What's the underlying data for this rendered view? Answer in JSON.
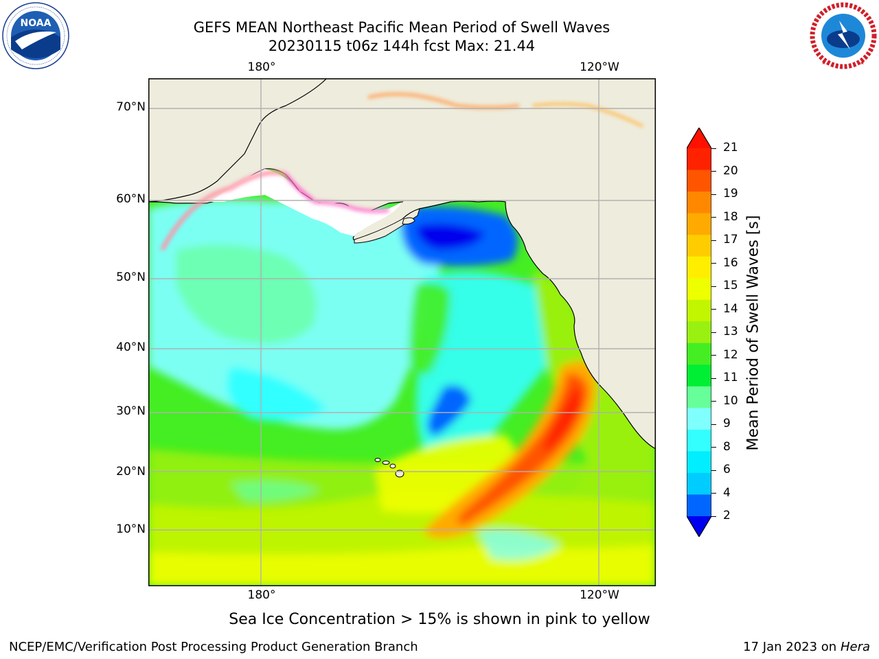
{
  "title": {
    "line1": "GEFS MEAN Northeast Pacific Mean Period of Swell Waves",
    "line2": "20230115 t06z 144h fcst   Max: 21.44"
  },
  "logos": {
    "left": "noaa-logo",
    "left_text": "NOAA",
    "left_ring_text": "NATIONAL OCEANIC AND ATMOSPHERIC ADMINISTRATION · U.S. DEPARTMENT OF COMMERCE",
    "right": "nws-logo",
    "right_ring_text": "NATIONAL WEATHER SERVICE"
  },
  "map": {
    "lon_labels": [
      "180°",
      "120°W"
    ],
    "lat_labels": [
      "70°N",
      "60°N",
      "50°N",
      "40°N",
      "30°N",
      "20°N",
      "10°N"
    ],
    "gridlines": true,
    "colors": {
      "land": "#eeecdc",
      "frame": "#000000",
      "grid": "#b0b0b0"
    }
  },
  "colorbar": {
    "label": "Mean Period of Swell Waves [s]",
    "ticks": [
      "2",
      "4",
      "6",
      "8",
      "9",
      "10",
      "11",
      "12",
      "13",
      "14",
      "15",
      "16",
      "17",
      "18",
      "19",
      "20",
      "21"
    ],
    "colors": [
      "#0000ee",
      "#0066ff",
      "#00ccff",
      "#00eeff",
      "#33ffff",
      "#80ffff",
      "#66ff99",
      "#00ee33",
      "#44ee22",
      "#99f011",
      "#c2f500",
      "#eeff00",
      "#ffee00",
      "#ffcc00",
      "#ffaa00",
      "#ff8800",
      "#ff5500",
      "#ff2200",
      "#ff1100"
    ],
    "extend": "both"
  },
  "footnote": "Sea Ice Concentration > 15% is shown in pink to yellow",
  "bottom_left": "NCEP/EMC/Verification Post Processing Product Generation Branch",
  "bottom_right_date": "17 Jan 2023 on ",
  "bottom_right_machine": "Hera"
}
